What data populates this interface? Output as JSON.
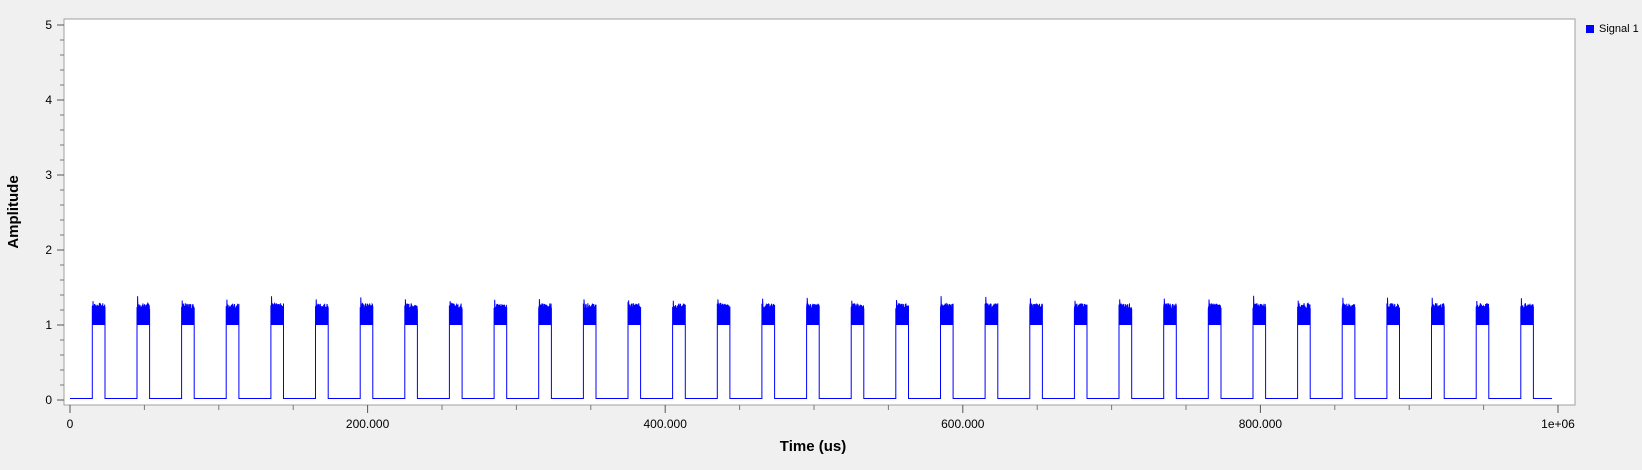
{
  "chart_data": {
    "type": "line",
    "title": "",
    "xlabel": "Time (us)",
    "ylabel": "Amplitude",
    "xlim": [
      0,
      1000000
    ],
    "ylim": [
      0,
      5
    ],
    "x_ticks": [
      {
        "value": 0,
        "label": "0"
      },
      {
        "value": 200000,
        "label": "200.000"
      },
      {
        "value": 400000,
        "label": "400.000"
      },
      {
        "value": 600000,
        "label": "600.000"
      },
      {
        "value": 800000,
        "label": "800.000"
      },
      {
        "value": 1000000,
        "label": "1e+06"
      }
    ],
    "y_ticks": [
      {
        "value": 0,
        "label": "0"
      },
      {
        "value": 1,
        "label": "1"
      },
      {
        "value": 2,
        "label": "2"
      },
      {
        "value": 3,
        "label": "3"
      },
      {
        "value": 4,
        "label": "4"
      },
      {
        "value": 5,
        "label": "5"
      }
    ],
    "grid": false,
    "legend_position": "top-right outside",
    "series": [
      {
        "name": "Signal 1",
        "color": "#0000ff",
        "baseline": 0.02,
        "burst_level": 1.25,
        "burst_min": 1.0,
        "burst_peak_max": 1.35,
        "burst_duration_us": 8500,
        "bursts_start_us": [
          15000,
          45000,
          75000,
          105000,
          135000,
          165000,
          195000,
          225000,
          255000,
          285000,
          315000,
          345000,
          375000,
          405000,
          435000,
          465000,
          495000,
          525000,
          555000,
          585000,
          615000,
          645000,
          675000,
          705000,
          735000,
          765000,
          795000,
          825000,
          855000,
          885000,
          915000,
          945000,
          975000
        ],
        "end_us": 996000
      }
    ]
  }
}
